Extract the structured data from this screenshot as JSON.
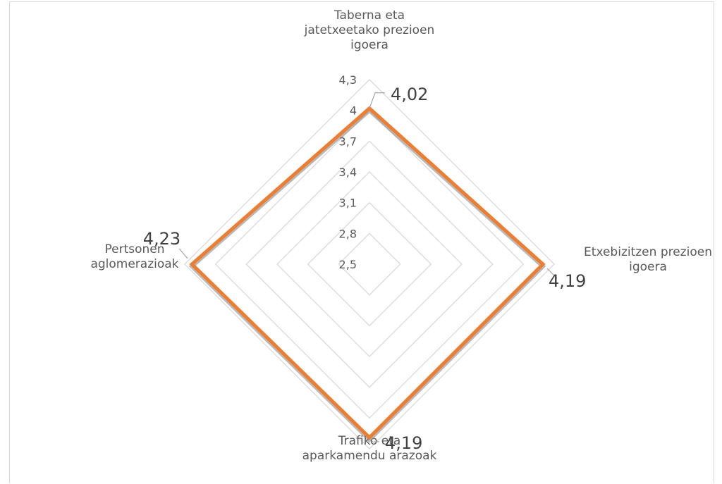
{
  "chart_data": {
    "type": "radar",
    "title": "",
    "categories": [
      "Taberna eta jatetxeetako prezioen igoera",
      "Etxebizitzen prezioen igoera",
      "Trafiko eta aparkamendu arazoak",
      "Pertsonen aglomerazioak"
    ],
    "category_label_lines": [
      [
        "Taberna eta",
        "jatetxeetako prezioen",
        "igoera"
      ],
      [
        "Etxebizitzen prezioen",
        "igoera"
      ],
      [
        "Trafiko eta",
        "aparkamendu arazoak"
      ],
      [
        "Pertsonen",
        "aglomerazioak"
      ]
    ],
    "series": [
      {
        "values": [
          4.02,
          4.19,
          4.19,
          4.23
        ],
        "data_labels": [
          "4,02",
          "4,19",
          "4,19",
          "4,23"
        ],
        "color": "#ED7D31"
      }
    ],
    "axis": {
      "min": 2.5,
      "max": 4.3,
      "ticks": [
        2.5,
        2.8,
        3.1,
        3.4,
        3.7,
        4.0,
        4.3
      ],
      "tick_labels": [
        "2,5",
        "2,8",
        "3,1",
        "3,4",
        "3,7",
        "4",
        "4,3"
      ]
    },
    "grid": true,
    "legend": "none",
    "colors": {
      "series_line": "#ED7D31",
      "grid": "#d9d9d9",
      "text": "#595959",
      "data_label": "#404040"
    }
  }
}
